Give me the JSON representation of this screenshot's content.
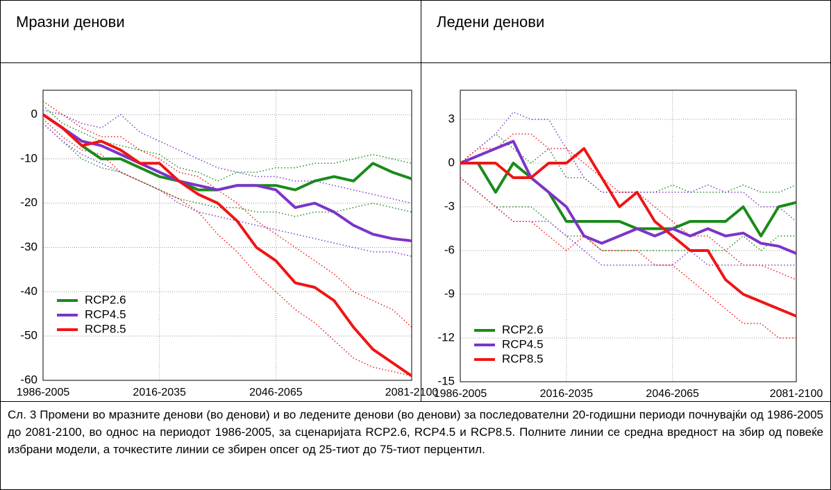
{
  "headers": [
    "Мразни денови",
    "Ледени денови"
  ],
  "caption": "Сл. 3 Промени во мразните денови (во денови) и во ледените денови (во денови) за последователни 20-годишни периоди почнувајќи од 1986-2005 до 2081-2100, во однос на периодот 1986-2005, за сценаријата RCP2.6, RCP4.5 и RCP8.5. Полните линии се средна вредност на збир од повеќе избрани модели, а точкестите линии се збирен опсег од 25-тиот до 75-тиот перцентил.",
  "chart_data": [
    {
      "type": "line",
      "grid": true,
      "legend": "lower left",
      "x": [
        1986,
        1991,
        1996,
        2001,
        2006,
        2011,
        2016,
        2021,
        2026,
        2031,
        2036,
        2041,
        2046,
        2051,
        2056,
        2061,
        2066,
        2071,
        2076,
        2081
      ],
      "xlim": [
        1986,
        2081
      ],
      "xticks": [
        {
          "value": 1986,
          "label": "1986-2005"
        },
        {
          "value": 2016,
          "label": "2016-2035"
        },
        {
          "value": 2046,
          "label": "2046-2065"
        },
        {
          "value": 2081,
          "label": "2081-2100"
        }
      ],
      "ylim": [
        -60,
        5.5
      ],
      "yticks": [
        0,
        -10,
        -20,
        -30,
        -40,
        -50,
        -60
      ],
      "series": [
        {
          "name": "RCP2.6",
          "color": "#1a8a1a",
          "values": [
            0,
            -3,
            -7,
            -10,
            -10,
            -12,
            -14,
            -15,
            -17,
            -17,
            -16,
            -16,
            -16,
            -17,
            -15,
            -14,
            -15,
            -11,
            -13,
            -14.5
          ],
          "p75": [
            2,
            -2,
            -4,
            -6,
            -7,
            -8,
            -9,
            -12,
            -13,
            -15,
            -13,
            -13,
            -12,
            -12,
            -11,
            -11,
            -10,
            -9,
            -10,
            -11
          ],
          "p25": [
            -2,
            -6,
            -10,
            -12,
            -13,
            -15,
            -17,
            -19,
            -20,
            -21,
            -21,
            -22,
            -22,
            -23,
            -22,
            -22,
            -21,
            -20,
            -21,
            -22
          ]
        },
        {
          "name": "RCP4.5",
          "color": "#7b35c8",
          "values": [
            0,
            -3,
            -6,
            -7,
            -9,
            -11,
            -13,
            -15,
            -16,
            -17,
            -16,
            -16,
            -17,
            -21,
            -20,
            -22,
            -25,
            -27,
            -28,
            -28.5
          ],
          "p75": [
            1,
            0,
            -2,
            -3,
            0,
            -4,
            -6,
            -8,
            -10,
            -12,
            -13,
            -14,
            -14,
            -15,
            -15,
            -16,
            -17,
            -18,
            -19,
            -20
          ],
          "p25": [
            -2,
            -6,
            -9,
            -11,
            -13,
            -15,
            -17,
            -20,
            -22,
            -23,
            -24,
            -25,
            -26,
            -27,
            -28,
            -29,
            -30,
            -31,
            -31,
            -32
          ]
        },
        {
          "name": "RCP8.5",
          "color": "#f01414",
          "values": [
            0,
            -3,
            -7,
            -6,
            -8,
            -11,
            -11,
            -15,
            -18,
            -20,
            -24,
            -30,
            -33,
            -38,
            -39,
            -42,
            -48,
            -53,
            -56,
            -59
          ],
          "p75": [
            3,
            0,
            -3,
            -5,
            -5,
            -8,
            -10,
            -13,
            -14,
            -17,
            -20,
            -24,
            -27,
            -30,
            -33,
            -36,
            -40,
            -42,
            -44,
            -48
          ],
          "p25": [
            -1,
            -5,
            -8,
            -9,
            -13,
            -15,
            -17,
            -19,
            -22,
            -27,
            -31,
            -36,
            -40,
            -44,
            -47,
            -51,
            -55,
            -57,
            -58,
            -59
          ]
        }
      ]
    },
    {
      "type": "line",
      "grid": true,
      "legend": "lower left",
      "x": [
        1986,
        1991,
        1996,
        2001,
        2006,
        2011,
        2016,
        2021,
        2026,
        2031,
        2036,
        2041,
        2046,
        2051,
        2056,
        2061,
        2066,
        2071,
        2076,
        2081
      ],
      "xlim": [
        1986,
        2081
      ],
      "xticks": [
        {
          "value": 1986,
          "label": "1986-2005"
        },
        {
          "value": 2016,
          "label": "2016-2035"
        },
        {
          "value": 2046,
          "label": "2046-2065"
        },
        {
          "value": 2081,
          "label": "2081-2100"
        }
      ],
      "ylim": [
        -15,
        5
      ],
      "yticks": [
        3,
        0,
        -3,
        -6,
        -9,
        -12,
        -15
      ],
      "series": [
        {
          "name": "RCP2.6",
          "color": "#1a8a1a",
          "values": [
            0,
            0,
            -2,
            0,
            -1,
            -2,
            -4,
            -4,
            -4,
            -4,
            -4.5,
            -4.5,
            -4.5,
            -4,
            -4,
            -4,
            -3,
            -5,
            -3,
            -2.7
          ],
          "p75": [
            0,
            1,
            2,
            1,
            0,
            1,
            -1,
            -1,
            -2,
            -2,
            -2,
            -2,
            -1.5,
            -2,
            -2,
            -2,
            -1.5,
            -2,
            -2,
            -1.5
          ],
          "p25": [
            -1,
            -2,
            -3,
            -3,
            -3,
            -4,
            -5,
            -5,
            -6,
            -6,
            -6,
            -6,
            -6,
            -6,
            -6,
            -6,
            -5,
            -6,
            -5,
            -5
          ]
        },
        {
          "name": "RCP4.5",
          "color": "#7b35c8",
          "values": [
            0,
            0.5,
            1,
            1.5,
            -1,
            -2,
            -3,
            -5,
            -5.5,
            -5,
            -4.5,
            -5,
            -4.5,
            -5,
            -4.5,
            -5,
            -4.8,
            -5.5,
            -5.7,
            -6.2
          ],
          "p75": [
            0,
            1,
            2,
            3.5,
            3,
            3,
            1,
            -1,
            -2,
            -2,
            -2,
            -2,
            -2,
            -2,
            -1.5,
            -2,
            -2,
            -3,
            -3,
            -4
          ],
          "p25": [
            -1,
            -2,
            -3,
            -4,
            -4,
            -4,
            -5,
            -6,
            -7,
            -7,
            -7,
            -7,
            -7,
            -6,
            -7,
            -7,
            -7,
            -7,
            -7,
            -7
          ]
        },
        {
          "name": "RCP8.5",
          "color": "#f01414",
          "values": [
            0,
            0,
            0,
            -1,
            -1,
            0,
            0,
            1,
            -1,
            -3,
            -2,
            -4,
            -5,
            -6,
            -6,
            -8,
            -9,
            -9.5,
            -10,
            -10.5
          ],
          "p75": [
            0,
            1,
            1,
            2,
            2,
            1,
            1,
            0,
            -1,
            -2,
            -2,
            -3,
            -4,
            -5,
            -5,
            -6,
            -7,
            -7,
            -7.5,
            -8
          ],
          "p25": [
            -1,
            -2,
            -3,
            -4,
            -4,
            -5,
            -6,
            -5,
            -6,
            -6,
            -6,
            -7,
            -7,
            -8,
            -9,
            -10,
            -11,
            -11,
            -12,
            -12
          ]
        }
      ]
    }
  ]
}
